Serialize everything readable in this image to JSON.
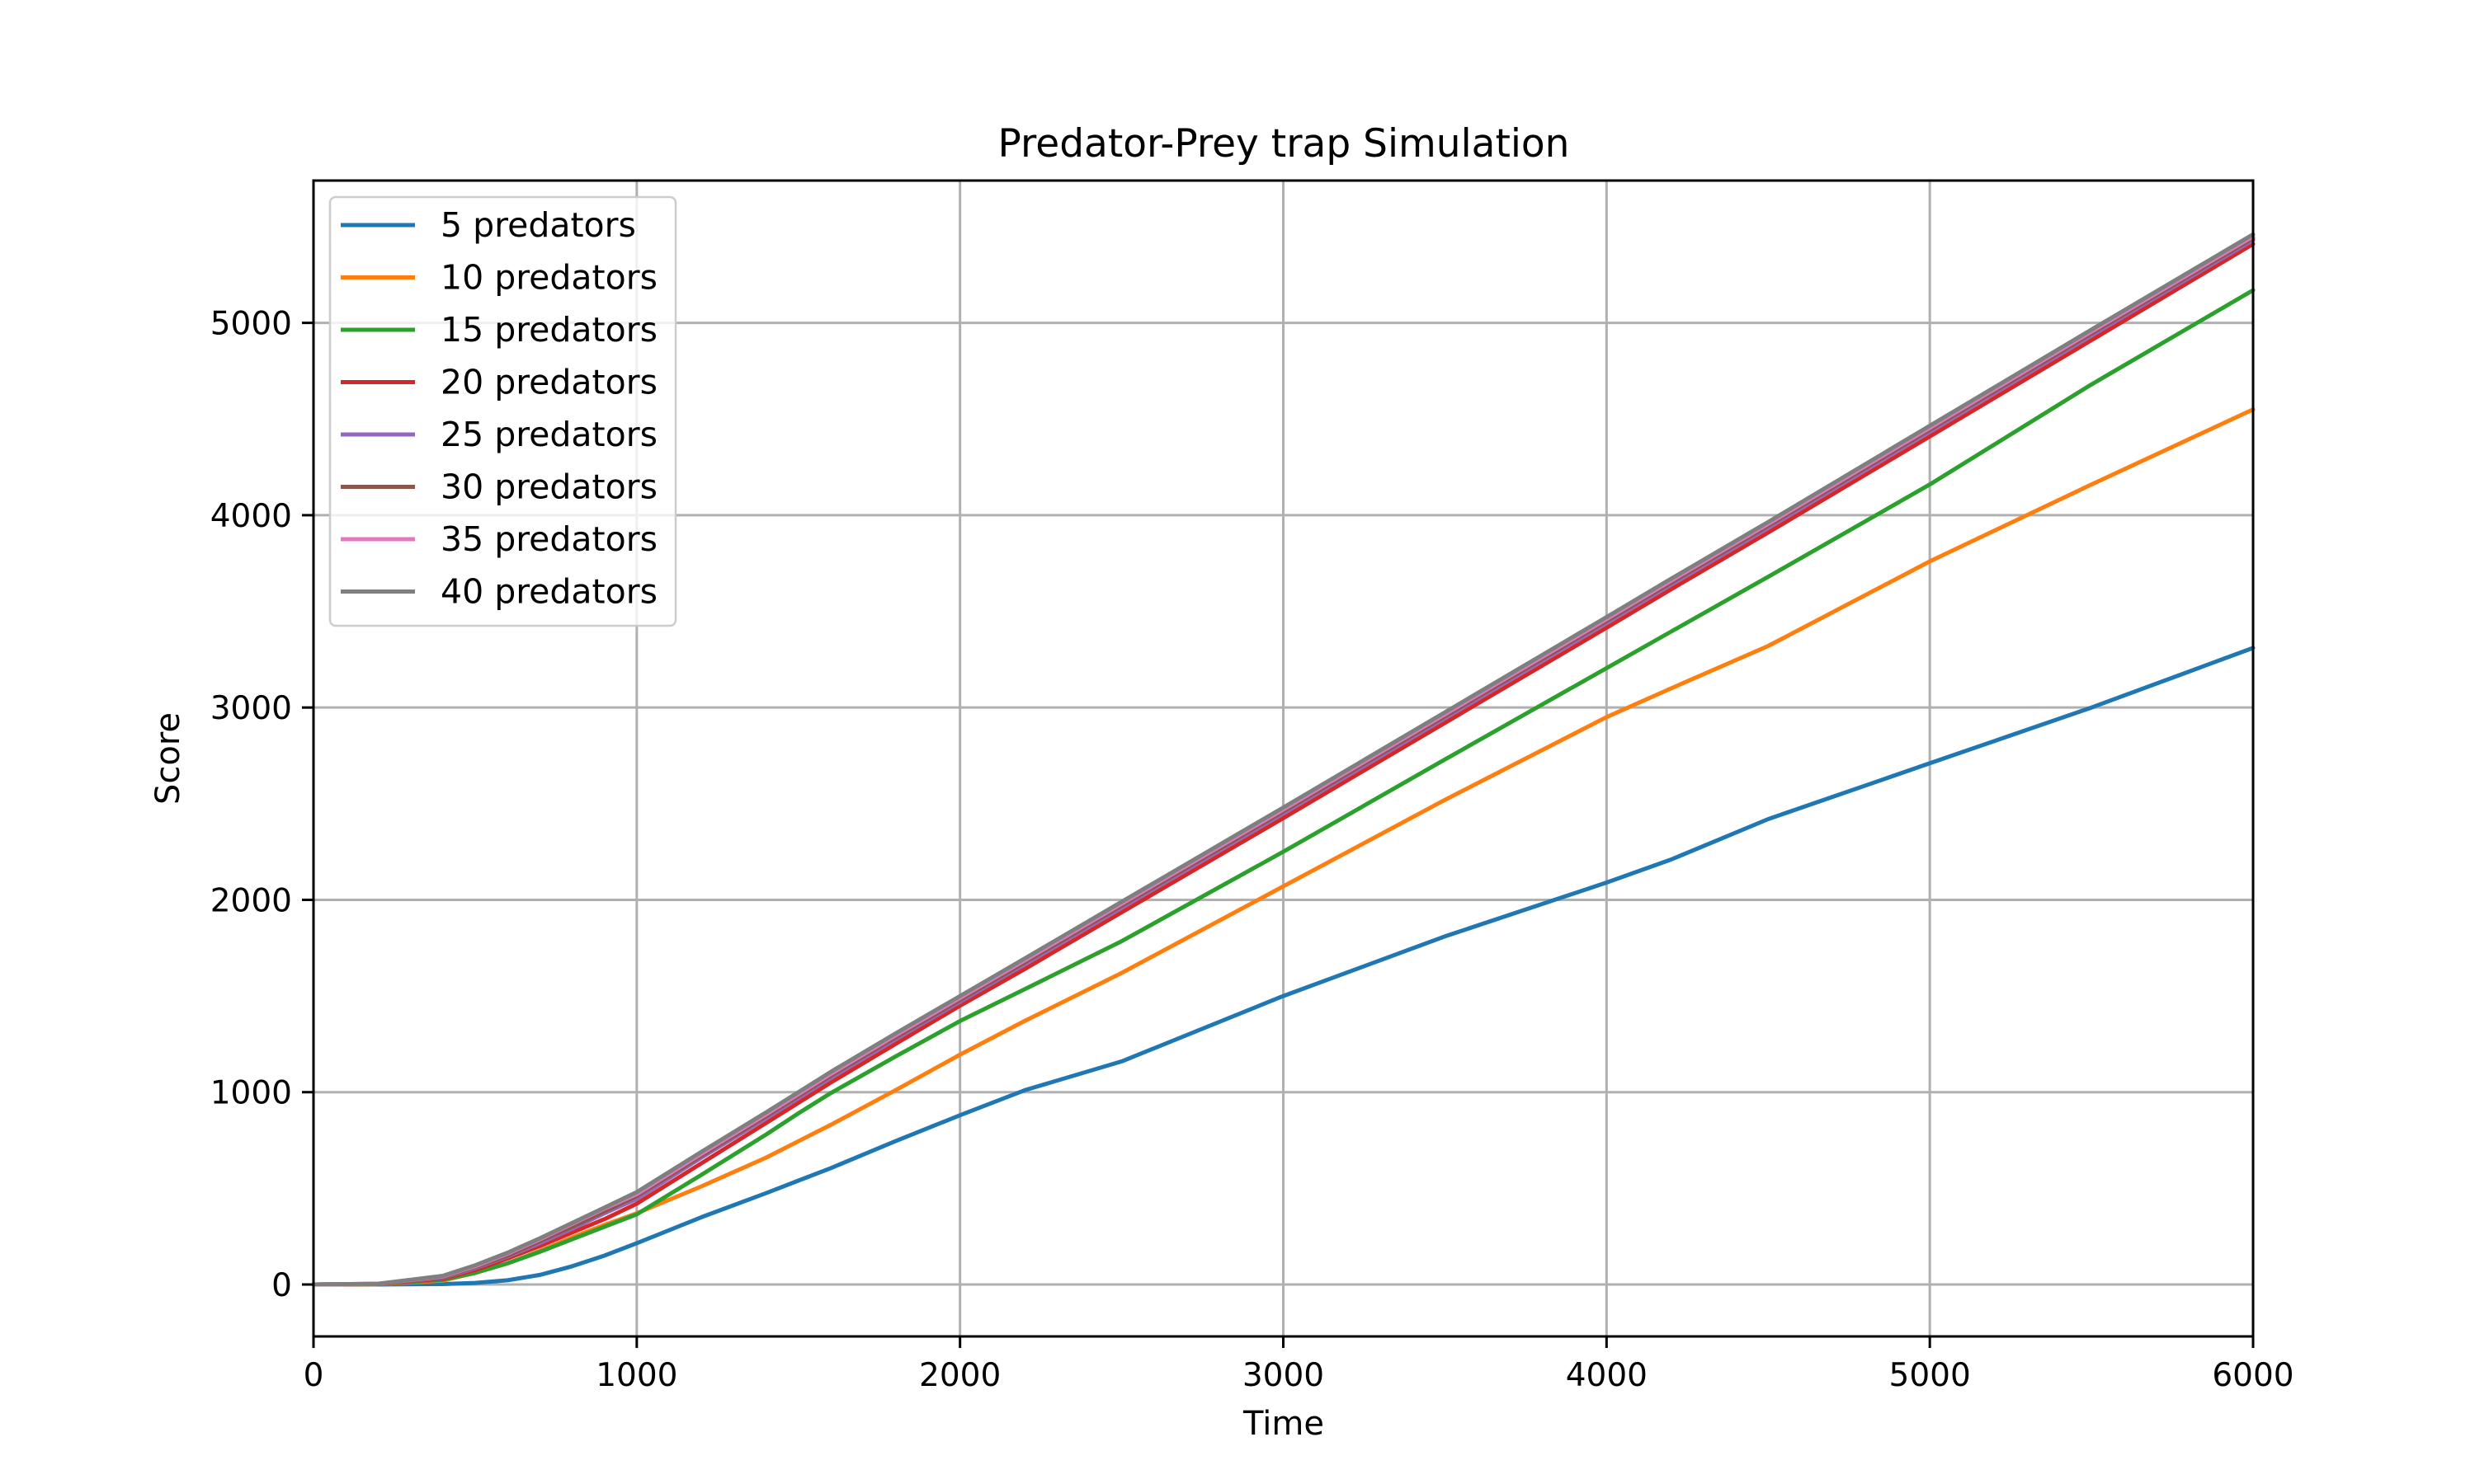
{
  "chart_data": {
    "type": "line",
    "title": "Predator-Prey trap Simulation",
    "xlabel": "Time",
    "ylabel": "Score",
    "xlim": [
      0,
      6000
    ],
    "ylim": [
      -270,
      5740
    ],
    "xticks": [
      0,
      1000,
      2000,
      3000,
      4000,
      5000,
      6000
    ],
    "yticks": [
      0,
      1000,
      2000,
      3000,
      4000,
      5000
    ],
    "grid": true,
    "legend_position": "upper-left",
    "x": [
      0,
      200,
      400,
      500,
      600,
      700,
      800,
      900,
      1000,
      1200,
      1400,
      1500,
      1600,
      1800,
      2000,
      2200,
      2500,
      3000,
      3500,
      4000,
      4200,
      4500,
      5000,
      5500,
      6000
    ],
    "series": [
      {
        "name": "5 predators",
        "color": "#1f77b4",
        "values": [
          0,
          0,
          2,
          8,
          22,
          50,
          95,
          150,
          215,
          350,
          475,
          540,
          605,
          745,
          880,
          1010,
          1160,
          1500,
          1810,
          2090,
          2210,
          2420,
          2710,
          3000,
          3310
        ]
      },
      {
        "name": "10 predators",
        "color": "#ff7f0e",
        "values": [
          0,
          1,
          20,
          60,
          110,
          175,
          245,
          310,
          370,
          510,
          660,
          745,
          830,
          1010,
          1195,
          1370,
          1620,
          2070,
          2520,
          2950,
          3100,
          3320,
          3760,
          4160,
          4550
        ]
      },
      {
        "name": "15 predators",
        "color": "#2ca02c",
        "values": [
          0,
          2,
          25,
          60,
          110,
          170,
          235,
          300,
          365,
          570,
          780,
          890,
          995,
          1185,
          1370,
          1535,
          1785,
          2250,
          2730,
          3205,
          3395,
          3680,
          4160,
          4680,
          5170
        ]
      },
      {
        "name": "20 predators",
        "color": "#d62728",
        "values": [
          0,
          2,
          30,
          75,
          135,
          200,
          270,
          340,
          420,
          630,
          840,
          945,
          1050,
          1250,
          1450,
          1640,
          1935,
          2425,
          2920,
          3415,
          3615,
          3910,
          4410,
          4910,
          5410
        ]
      },
      {
        "name": "25 predators",
        "color": "#9467bd",
        "values": [
          0,
          3,
          35,
          85,
          145,
          215,
          290,
          370,
          445,
          660,
          865,
          970,
          1075,
          1275,
          1470,
          1665,
          1960,
          2450,
          2945,
          3440,
          3640,
          3935,
          4435,
          4935,
          5430
        ]
      },
      {
        "name": "30 predators",
        "color": "#8c564b",
        "values": [
          0,
          3,
          38,
          90,
          150,
          225,
          300,
          380,
          460,
          670,
          875,
          980,
          1085,
          1285,
          1480,
          1675,
          1970,
          2460,
          2955,
          3450,
          3650,
          3945,
          4445,
          4945,
          5440
        ]
      },
      {
        "name": "35 predators",
        "color": "#e377c2",
        "values": [
          0,
          4,
          42,
          95,
          160,
          235,
          315,
          395,
          470,
          680,
          885,
          990,
          1095,
          1295,
          1490,
          1685,
          1980,
          2470,
          2965,
          3460,
          3660,
          3955,
          4455,
          4955,
          5450
        ]
      },
      {
        "name": "40 predators",
        "color": "#7f7f7f",
        "values": [
          0,
          4,
          45,
          100,
          165,
          240,
          320,
          400,
          480,
          690,
          895,
          1000,
          1105,
          1305,
          1500,
          1695,
          1990,
          2480,
          2975,
          3470,
          3670,
          3965,
          4465,
          4965,
          5460
        ]
      }
    ]
  }
}
